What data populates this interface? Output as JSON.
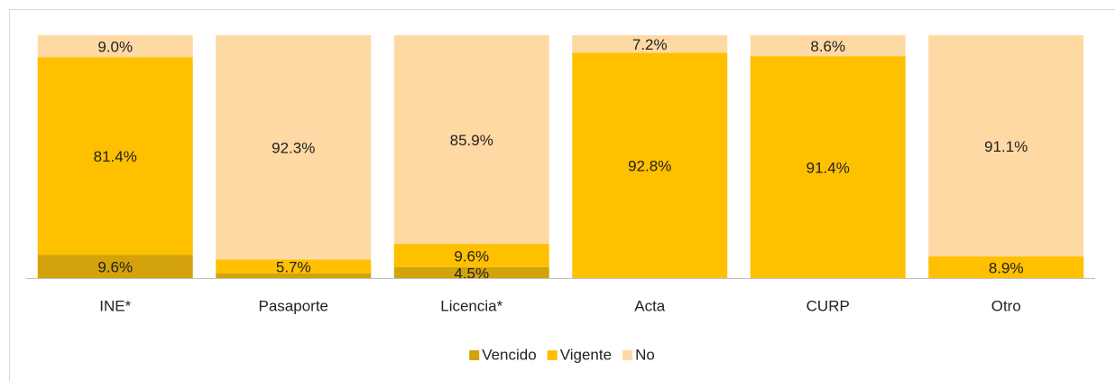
{
  "chart_data": {
    "type": "stacked_bar_100",
    "categories": [
      "INE*",
      "Pasaporte",
      "Licencia*",
      "Acta",
      "CURP",
      "Otro"
    ],
    "series": [
      {
        "name": "Vencido",
        "color": "#D4A20A",
        "values": [
          9.6,
          2.0,
          4.5,
          0,
          0,
          0
        ],
        "value_labels": [
          "9.6%",
          null,
          "4.5%",
          null,
          null,
          null
        ]
      },
      {
        "name": "Vigente",
        "color": "#FFC000",
        "values": [
          81.4,
          5.7,
          9.6,
          92.8,
          91.4,
          8.9
        ],
        "value_labels": [
          "81.4%",
          "5.7%",
          "9.6%",
          "92.8%",
          "91.4%",
          "8.9%"
        ]
      },
      {
        "name": "No",
        "color": "#FFD9A3",
        "values": [
          9.0,
          92.3,
          85.9,
          7.2,
          8.6,
          91.1
        ],
        "value_labels": [
          "9.0%",
          "92.3%",
          "85.9%",
          "7.2%",
          "8.6%",
          "91.1%"
        ]
      }
    ],
    "ylim": [
      0,
      100
    ],
    "legend": "bottom"
  }
}
